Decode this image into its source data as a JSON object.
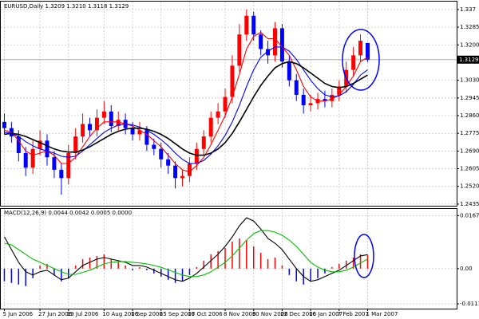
{
  "chart_data": [
    {
      "type": "candlestick",
      "title": "EURUSD,Daily  1.3209 1.3210 1.3118 1.3129",
      "open": [
        1.283,
        1.28,
        1.276,
        1.268,
        1.261,
        1.27,
        1.274,
        1.266,
        1.26,
        1.256,
        1.268,
        1.276,
        1.282,
        1.279,
        1.285,
        1.288,
        1.281,
        1.284,
        1.28,
        1.277,
        1.279,
        1.272,
        1.27,
        1.265,
        1.262,
        1.256,
        1.257,
        1.263,
        1.27,
        1.276,
        1.285,
        1.288,
        1.295,
        1.31,
        1.325,
        1.334,
        1.325,
        1.318,
        1.315,
        1.328,
        1.312,
        1.303,
        1.296,
        1.291,
        1.292,
        1.294,
        1.293,
        1.296,
        1.3,
        1.308,
        1.315,
        1.3209
      ],
      "high": [
        1.287,
        1.283,
        1.279,
        1.271,
        1.274,
        1.279,
        1.277,
        1.269,
        1.263,
        1.272,
        1.28,
        1.287,
        1.285,
        1.289,
        1.293,
        1.291,
        1.288,
        1.287,
        1.283,
        1.283,
        1.281,
        1.275,
        1.273,
        1.268,
        1.264,
        1.26,
        1.266,
        1.273,
        1.279,
        1.288,
        1.292,
        1.299,
        1.315,
        1.33,
        1.337,
        1.336,
        1.327,
        1.322,
        1.331,
        1.33,
        1.315,
        1.306,
        1.299,
        1.296,
        1.297,
        1.298,
        1.299,
        1.303,
        1.312,
        1.319,
        1.325,
        1.321
      ],
      "low": [
        1.277,
        1.273,
        1.264,
        1.257,
        1.258,
        1.267,
        1.262,
        1.256,
        1.248,
        1.253,
        1.265,
        1.273,
        1.276,
        1.276,
        1.282,
        1.278,
        1.278,
        1.277,
        1.274,
        1.274,
        1.269,
        1.267,
        1.261,
        1.258,
        1.251,
        1.252,
        1.254,
        1.26,
        1.267,
        1.273,
        1.282,
        1.285,
        1.292,
        1.307,
        1.322,
        1.322,
        1.315,
        1.311,
        1.312,
        1.309,
        1.3,
        1.293,
        1.287,
        1.288,
        1.289,
        1.29,
        1.29,
        1.293,
        1.297,
        1.305,
        1.312,
        1.3118
      ],
      "close": [
        1.28,
        1.276,
        1.268,
        1.261,
        1.27,
        1.274,
        1.266,
        1.26,
        1.256,
        1.268,
        1.276,
        1.282,
        1.279,
        1.285,
        1.288,
        1.281,
        1.284,
        1.28,
        1.277,
        1.279,
        1.272,
        1.27,
        1.265,
        1.262,
        1.256,
        1.257,
        1.263,
        1.27,
        1.276,
        1.285,
        1.288,
        1.295,
        1.31,
        1.325,
        1.334,
        1.325,
        1.318,
        1.315,
        1.328,
        1.312,
        1.303,
        1.296,
        1.291,
        1.292,
        1.294,
        1.293,
        1.296,
        1.3,
        1.308,
        1.315,
        1.322,
        1.3129
      ],
      "up_color": "#ff0000",
      "down_color": "#0000ff",
      "series": [
        {
          "color": "#ff0000",
          "values": [
            1.279,
            1.278,
            1.274,
            1.269,
            1.267,
            1.268,
            1.269,
            1.267,
            1.263,
            1.263,
            1.266,
            1.271,
            1.276,
            1.28,
            1.283,
            1.283,
            1.283,
            1.282,
            1.281,
            1.279,
            1.277,
            1.274,
            1.271,
            1.267,
            1.263,
            1.26,
            1.259,
            1.262,
            1.266,
            1.272,
            1.279,
            1.286,
            1.295,
            1.306,
            1.318,
            1.324,
            1.326,
            1.323,
            1.323,
            1.319,
            1.315,
            1.308,
            1.3,
            1.295,
            1.293,
            1.293,
            1.294,
            1.296,
            1.3,
            1.305,
            1.312,
            1.314
          ]
        },
        {
          "color": "#0000ff",
          "values": [
            1.278,
            1.2775,
            1.276,
            1.2735,
            1.2715,
            1.27,
            1.269,
            1.268,
            1.2665,
            1.266,
            1.2665,
            1.269,
            1.272,
            1.275,
            1.278,
            1.28,
            1.2815,
            1.282,
            1.2815,
            1.2805,
            1.279,
            1.277,
            1.2745,
            1.2715,
            1.268,
            1.265,
            1.263,
            1.263,
            1.2645,
            1.2675,
            1.2715,
            1.2765,
            1.283,
            1.291,
            1.3,
            1.308,
            1.314,
            1.317,
            1.319,
            1.319,
            1.317,
            1.313,
            1.308,
            1.303,
            1.299,
            1.296,
            1.295,
            1.2955,
            1.2975,
            1.301,
            1.3055,
            1.308
          ]
        },
        {
          "color": "#000000",
          "values": [
            1.277,
            1.2775,
            1.277,
            1.276,
            1.2745,
            1.273,
            1.2715,
            1.27,
            1.269,
            1.2685,
            1.2685,
            1.2695,
            1.271,
            1.273,
            1.275,
            1.277,
            1.2785,
            1.2795,
            1.28,
            1.28,
            1.2795,
            1.2785,
            1.277,
            1.275,
            1.2725,
            1.27,
            1.268,
            1.267,
            1.267,
            1.268,
            1.27,
            1.273,
            1.2775,
            1.283,
            1.289,
            1.295,
            1.3005,
            1.305,
            1.309,
            1.311,
            1.312,
            1.311,
            1.309,
            1.3065,
            1.304,
            1.3015,
            1.3,
            1.2995,
            1.3,
            1.3015,
            1.3035,
            1.3055
          ]
        }
      ],
      "ylim": [
        1.2427,
        1.3408
      ],
      "yticks": [
        1.337,
        1.3285,
        {
          "value": 1.32,
          "label": "1.3200"
        },
        {
          "value": 1.303,
          "label": "1.3030"
        },
        1.2945,
        {
          "value": 1.286,
          "label": "1.2860"
        },
        1.2775,
        {
          "value": 1.269,
          "label": "1.2690"
        },
        1.2605,
        {
          "value": 1.252,
          "label": "1.2520"
        },
        1.2435
      ],
      "current_price": 1.3129,
      "grid": true
    },
    {
      "type": "macd",
      "title": "MACD(12,26,9) 0.0044 0.0042 0.0005 0.0000",
      "categories": [
        "5 Jun 2006",
        null,
        null,
        null,
        null,
        "27 Jun 2006",
        null,
        null,
        null,
        "19 Jul 2006",
        null,
        null,
        null,
        null,
        "10 Aug 2006",
        null,
        null,
        null,
        "1 Sep 2006",
        null,
        null,
        null,
        "25 Sep 2006",
        null,
        null,
        null,
        "17 Oct 2006",
        null,
        null,
        null,
        null,
        "8 Nov 2006",
        null,
        null,
        null,
        "30 Nov 2006",
        null,
        null,
        null,
        "22 Dec 2006",
        null,
        null,
        null,
        "16 Jan 2007",
        null,
        null,
        null,
        "7 Feb 2007",
        null,
        null,
        null,
        "1 Mar 2007"
      ],
      "histogram": {
        "up_color": "#ff0000",
        "down_color": "#0000ff",
        "values": [
          -0.004,
          -0.0045,
          -0.005,
          -0.0055,
          -0.003,
          0.001,
          0.0015,
          -0.002,
          -0.004,
          -0.003,
          0.001,
          0.003,
          0.0035,
          0.004,
          0.0045,
          0.003,
          0.002,
          0.001,
          -0.0005,
          0.0005,
          -0.0005,
          -0.0015,
          -0.0025,
          -0.0035,
          -0.0045,
          -0.004,
          -0.002,
          0.0005,
          0.0025,
          0.0045,
          0.0055,
          0.0065,
          0.0085,
          0.0095,
          0.009,
          0.007,
          0.005,
          0.003,
          0.0035,
          0.001,
          -0.002,
          -0.004,
          -0.005,
          -0.004,
          -0.003,
          -0.0015,
          0.0005,
          0.0015,
          0.0025,
          0.0035,
          0.0045,
          0.0042
        ]
      },
      "series": [
        {
          "color": "#000000",
          "values": [
            0.01,
            0.006,
            0.002,
            -0.001,
            -0.002,
            -0.001,
            -0.0005,
            -0.002,
            -0.0035,
            -0.003,
            -0.001,
            0.001,
            0.002,
            0.003,
            0.0035,
            0.003,
            0.0025,
            0.002,
            0.001,
            0.001,
            0.0005,
            -0.0005,
            -0.0015,
            -0.0025,
            -0.0035,
            -0.004,
            -0.003,
            -0.0015,
            0.0005,
            0.0025,
            0.0045,
            0.007,
            0.01,
            0.0135,
            0.016,
            0.015,
            0.0125,
            0.0095,
            0.008,
            0.006,
            0.003,
            0.0,
            -0.0025,
            -0.004,
            -0.0035,
            -0.0025,
            -0.0015,
            -0.0005,
            0.001,
            0.0025,
            0.004,
            0.0044
          ]
        },
        {
          "color": "#00c000",
          "values": [
            0.008,
            0.0075,
            0.006,
            0.0045,
            0.003,
            0.002,
            0.001,
            0.0,
            -0.001,
            -0.0018,
            -0.0018,
            -0.0012,
            -0.0005,
            0.0005,
            0.0015,
            0.002,
            0.0022,
            0.0022,
            0.002,
            0.0018,
            0.0015,
            0.001,
            0.0004,
            -0.0004,
            -0.0012,
            -0.002,
            -0.0025,
            -0.0025,
            -0.002,
            -0.001,
            0.0005,
            0.002,
            0.004,
            0.0065,
            0.009,
            0.011,
            0.012,
            0.012,
            0.0115,
            0.0105,
            0.009,
            0.007,
            0.0045,
            0.002,
            0.0005,
            -0.0005,
            -0.001,
            -0.001,
            -0.0005,
            0.0005,
            0.0018,
            0.003
          ]
        }
      ],
      "ylim": [
        -0.0126,
        0.0188
      ],
      "yticks": [
        0.0167,
        {
          "value": 0,
          "label": "0.00"
        },
        -0.0111
      ],
      "grid": true
    }
  ]
}
